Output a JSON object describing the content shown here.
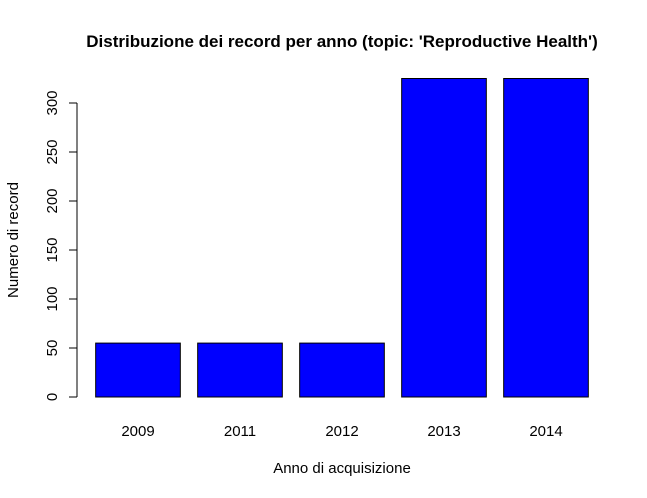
{
  "chart_data": {
    "type": "bar",
    "title": "Distribuzione dei record per anno (topic: 'Reproductive Health')",
    "xlabel": "Anno di acquisizione",
    "ylabel": "Numero di record",
    "categories": [
      "2009",
      "2011",
      "2012",
      "2013",
      "2014"
    ],
    "values": [
      55,
      55,
      55,
      325,
      325
    ],
    "ylim": [
      0,
      300
    ],
    "yticks": [
      "0",
      "50",
      "100",
      "150",
      "200",
      "250",
      "300"
    ],
    "grid": false,
    "legend": "none",
    "bar_color": "#0000FF",
    "bar_border_color": "#000000"
  }
}
